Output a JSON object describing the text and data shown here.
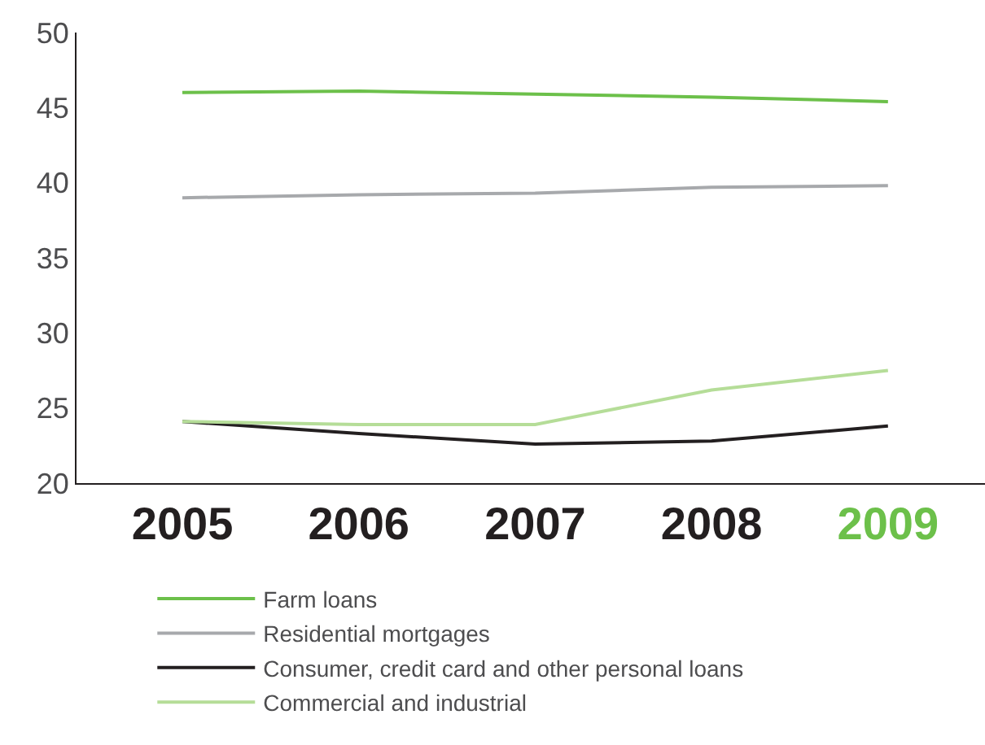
{
  "chart_data": {
    "type": "line",
    "categories": [
      "2005",
      "2006",
      "2007",
      "2008",
      "2009"
    ],
    "series": [
      {
        "name": "Farm loans",
        "color": "#6cc04a",
        "values": [
          46.0,
          46.1,
          45.9,
          45.7,
          45.4
        ]
      },
      {
        "name": "Residential mortgages",
        "color": "#a7a9ac",
        "values": [
          39.0,
          39.2,
          39.3,
          39.7,
          39.8
        ]
      },
      {
        "name": "Consumer, credit card and other personal loans",
        "color": "#231f20",
        "values": [
          24.1,
          23.3,
          22.6,
          22.8,
          23.8
        ]
      },
      {
        "name": "Commercial and industrial",
        "color": "#b5dd98",
        "values": [
          24.1,
          23.9,
          23.9,
          26.2,
          27.5
        ]
      }
    ],
    "ylim": [
      20,
      50
    ],
    "yticks": [
      20,
      25,
      30,
      35,
      40,
      45,
      50
    ],
    "legend": "bottom",
    "marker": "none",
    "line_style": "solid"
  }
}
